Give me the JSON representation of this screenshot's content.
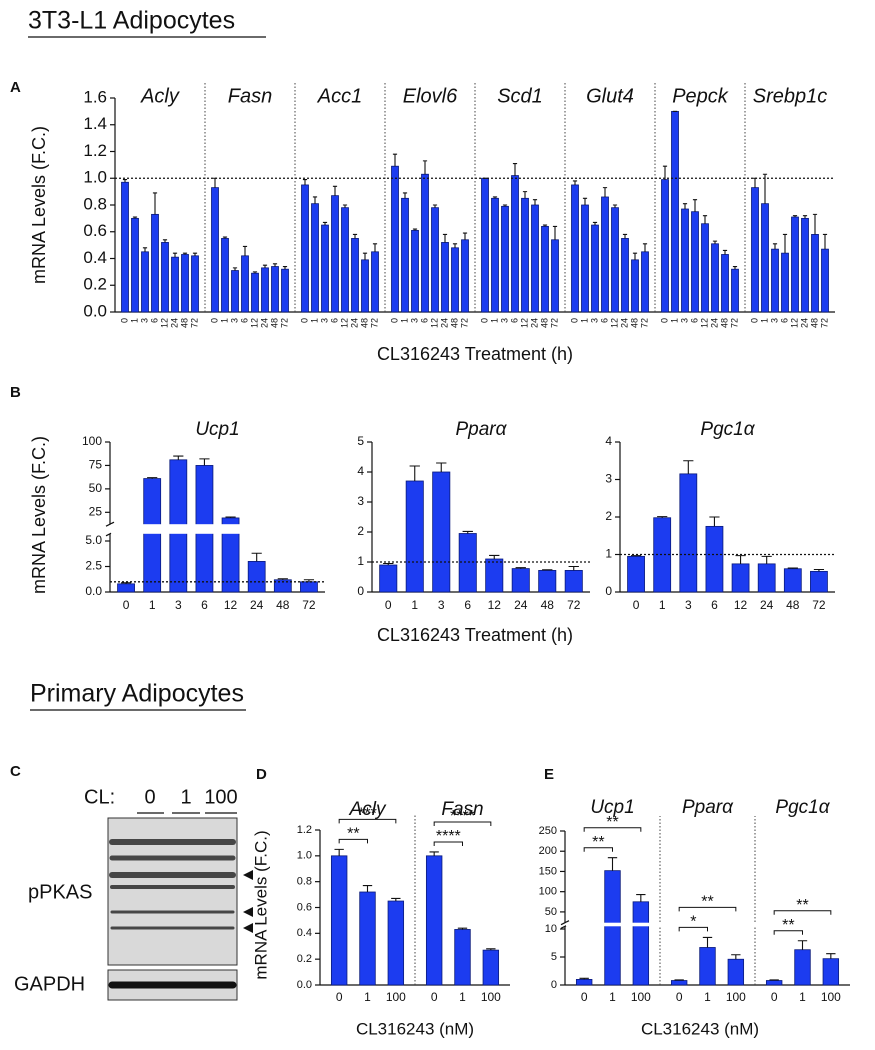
{
  "headings": [
    "3T3-L1 Adipocytes",
    "Primary Adipocytes"
  ],
  "panels": [
    "A",
    "B",
    "C",
    "D",
    "E"
  ],
  "blot": {
    "treatment": "CL:",
    "doses": [
      "0",
      "1",
      "100"
    ],
    "labels": [
      "pPKAS",
      "GAPDH"
    ]
  },
  "chart_data": [
    {
      "type": "bar",
      "ylabel": "mRNA Levels (F.C.)",
      "xlabel": "CL316243 Treatment (h)",
      "color": "#1c3cf0",
      "refline": 1,
      "categories": [
        "0",
        "1",
        "3",
        "6",
        "12",
        "24",
        "48",
        "72"
      ],
      "ylim": [
        0,
        1.6
      ],
      "yticks": [
        {
          "value": 0,
          "label": "0.0"
        },
        0.2,
        0.4,
        0.6,
        0.8,
        {
          "value": 1,
          "label": "1.0"
        },
        1.2,
        1.4,
        1.6
      ],
      "groups": [
        {
          "name": "Acly",
          "values": [
            0.97,
            0.7,
            0.45,
            0.73,
            0.52,
            0.41,
            0.43,
            0.42
          ],
          "errors": [
            0.02,
            0.01,
            0.03,
            0.16,
            0.02,
            0.03,
            0.01,
            0.02
          ]
        },
        {
          "name": "Fasn",
          "values": [
            0.93,
            0.55,
            0.31,
            0.42,
            0.29,
            0.33,
            0.34,
            0.32
          ],
          "errors": [
            0.07,
            0.01,
            0.02,
            0.07,
            0.01,
            0.02,
            0.02,
            0.02
          ]
        },
        {
          "name": "Acc1",
          "values": [
            0.95,
            0.81,
            0.65,
            0.87,
            0.78,
            0.55,
            0.39,
            0.45
          ],
          "errors": [
            0.04,
            0.05,
            0.02,
            0.07,
            0.02,
            0.03,
            0.05,
            0.06
          ]
        },
        {
          "name": "Elovl6",
          "values": [
            1.09,
            0.85,
            0.61,
            1.03,
            0.78,
            0.52,
            0.48,
            0.54
          ],
          "errors": [
            0.09,
            0.04,
            0.01,
            0.1,
            0.02,
            0.06,
            0.03,
            0.05
          ]
        },
        {
          "name": "Scd1",
          "values": [
            1,
            0.85,
            0.79,
            1.02,
            0.85,
            0.8,
            0.64,
            0.54
          ],
          "errors": [
            0,
            0.01,
            0.01,
            0.09,
            0.05,
            0.04,
            0.01,
            0.1
          ]
        },
        {
          "name": "Glut4",
          "values": [
            0.95,
            0.8,
            0.65,
            0.86,
            0.78,
            0.55,
            0.39,
            0.45
          ],
          "errors": [
            0.03,
            0.05,
            0.02,
            0.07,
            0.02,
            0.03,
            0.05,
            0.06
          ]
        },
        {
          "name": "Pepck",
          "values": [
            0.99,
            1.5,
            0.77,
            0.75,
            0.66,
            0.51,
            0.43,
            0.32
          ],
          "errors": [
            0.1,
            0,
            0.04,
            0.09,
            0.06,
            0.02,
            0.03,
            0.02
          ]
        },
        {
          "name": "Srebp1c",
          "values": [
            0.93,
            0.81,
            0.47,
            0.44,
            0.71,
            0.7,
            0.58,
            0.47
          ],
          "errors": [
            0.07,
            0.22,
            0.04,
            0.14,
            0.01,
            0.02,
            0.15,
            0.11
          ]
        }
      ]
    },
    {
      "type": "bar",
      "title": "Ucp1",
      "ylabel": "mRNA Levels (F.C.)",
      "color": "#1c3cf0",
      "refline": 1,
      "categories": [
        "0",
        "1",
        "3",
        "6",
        "12",
        "24",
        "48",
        "72"
      ],
      "values": [
        0.8,
        61,
        81,
        75,
        19,
        3,
        1.2,
        1
      ],
      "errors": [
        0.1,
        1,
        4,
        7,
        1,
        0.8,
        0.1,
        0.2
      ],
      "ylim": [
        0,
        100
      ],
      "ybreak": [
        5,
        20
      ],
      "yticks": [
        {
          "value": 0,
          "label": "0.0"
        },
        2.5,
        {
          "value": 5,
          "label": "5.0"
        },
        25,
        50,
        75,
        100
      ]
    },
    {
      "type": "bar",
      "title": "Pparα",
      "xlabel": "CL316243 Treatment (h)",
      "color": "#1c3cf0",
      "refline": 1,
      "categories": [
        "0",
        "1",
        "3",
        "6",
        "12",
        "24",
        "48",
        "72"
      ],
      "values": [
        0.9,
        3.7,
        4,
        1.95,
        1.1,
        0.78,
        0.72,
        0.72
      ],
      "errors": [
        0.05,
        0.5,
        0.3,
        0.07,
        0.12,
        0.03,
        0.02,
        0.13
      ],
      "ylim": [
        0,
        5
      ],
      "yticks": [
        0,
        1,
        2,
        3,
        4,
        5
      ]
    },
    {
      "type": "bar",
      "title": "Pgc1α",
      "color": "#1c3cf0",
      "refline": 1,
      "categories": [
        "0",
        "1",
        "3",
        "6",
        "12",
        "24",
        "48",
        "72"
      ],
      "values": [
        0.95,
        1.98,
        3.15,
        1.75,
        0.75,
        0.75,
        0.62,
        0.55
      ],
      "errors": [
        0.02,
        0.03,
        0.35,
        0.25,
        0.22,
        0.2,
        0.02,
        0.05
      ],
      "ylim": [
        0,
        4
      ],
      "yticks": [
        0,
        1,
        2,
        3,
        4
      ]
    },
    {
      "type": "bar",
      "ylabel": "mRNA Levels (F.C.)",
      "xlabel": "CL316243 (nM)",
      "color": "#1c3cf0",
      "categories": [
        "0",
        "1",
        "100"
      ],
      "ylim": [
        0,
        1.2
      ],
      "yticks": [
        {
          "value": 0,
          "label": "0.0"
        },
        0.2,
        0.4,
        0.6,
        0.8,
        {
          "value": 1,
          "label": "1.0"
        },
        1.2
      ],
      "groups": [
        {
          "name": "Acly",
          "values": [
            1,
            0.72,
            0.65
          ],
          "errors": [
            0.05,
            0.05,
            0.02
          ],
          "significance": [
            "**",
            "***"
          ]
        },
        {
          "name": "Fasn",
          "values": [
            1,
            0.43,
            0.27
          ],
          "errors": [
            0.03,
            0.01,
            0.01
          ],
          "significance": [
            "****",
            "****"
          ]
        }
      ]
    },
    {
      "type": "bar",
      "xlabel": "CL316243 (nM)",
      "color": "#1c3cf0",
      "categories": [
        "0",
        "1",
        "100"
      ],
      "ylim": [
        0,
        250
      ],
      "ybreak": [
        10,
        30
      ],
      "yticks": [
        0,
        5,
        10,
        50,
        100,
        150,
        200,
        250
      ],
      "groups": [
        {
          "name": "Ucp1",
          "values": [
            1,
            152,
            75
          ],
          "errors": [
            0.2,
            32,
            18
          ],
          "significance": [
            "**",
            "**"
          ]
        },
        {
          "name": "Pparα",
          "values": [
            0.8,
            6.7,
            4.6
          ],
          "errors": [
            0.1,
            1.8,
            0.8
          ],
          "significance": [
            "*",
            "**"
          ]
        },
        {
          "name": "Pgc1α",
          "values": [
            0.8,
            6.3,
            4.7
          ],
          "errors": [
            0.1,
            1.6,
            0.9
          ],
          "significance": [
            "**",
            "**"
          ]
        }
      ]
    }
  ]
}
